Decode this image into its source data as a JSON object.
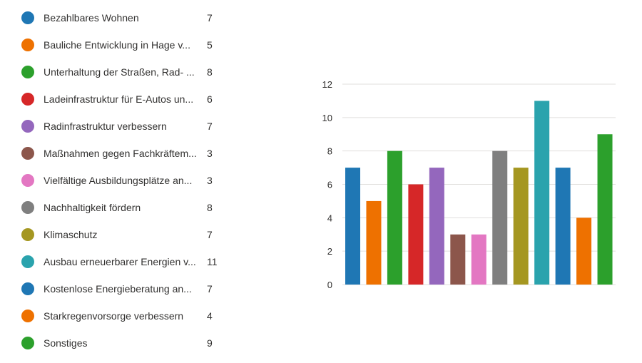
{
  "chart_data": {
    "type": "bar",
    "categories": [
      "Bezahlbares Wohnen",
      "Bauliche Entwicklung in Hage v...",
      "Unterhaltung der Straßen, Rad- ...",
      "Ladeinfrastruktur für E-Autos un...",
      "Radinfrastruktur verbessern",
      "Maßnahmen gegen Fachkräftem...",
      "Vielfältige Ausbildungsplätze an...",
      "Nachhaltigkeit fördern",
      "Klimaschutz",
      "Ausbau erneuerbarer Energien v...",
      "Kostenlose Energieberatung an...",
      "Starkregenvorsorge verbessern",
      "Sonstiges"
    ],
    "values": [
      7,
      5,
      8,
      6,
      7,
      3,
      3,
      8,
      7,
      11,
      7,
      4,
      9
    ],
    "value_labels": [
      "7",
      "5",
      "8",
      "6",
      "7",
      "3",
      "3",
      "8",
      "7",
      "11",
      "7",
      "4",
      "9"
    ],
    "colors": [
      "#1f77b4",
      "#ee7100",
      "#2ca02c",
      "#d62728",
      "#9467bd",
      "#8c564b",
      "#e377c2",
      "#7f7f7f",
      "#a59721",
      "#2aa3ad",
      "#1f77b4",
      "#ee7100",
      "#2ca02c"
    ],
    "ylim": [
      0,
      12
    ],
    "yticks": [
      0,
      2,
      4,
      6,
      8,
      10,
      12
    ],
    "ytick_labels": [
      "0",
      "2",
      "4",
      "6",
      "8",
      "10",
      "12"
    ],
    "grid": true,
    "legend_position": "left"
  }
}
